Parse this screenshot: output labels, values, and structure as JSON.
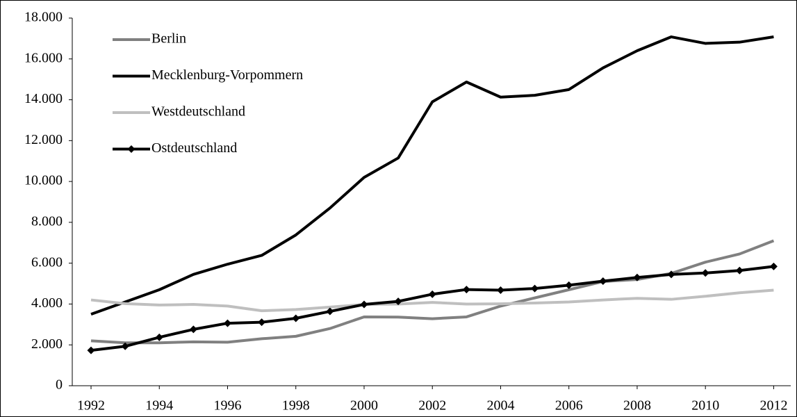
{
  "chart_data": {
    "type": "line",
    "x": [
      1992,
      1993,
      1994,
      1995,
      1996,
      1997,
      1998,
      1999,
      2000,
      2001,
      2002,
      2003,
      2004,
      2005,
      2006,
      2007,
      2008,
      2009,
      2010,
      2011,
      2012
    ],
    "xlim": [
      1991.45,
      2012.5
    ],
    "xticks": [
      1992,
      1994,
      1996,
      1998,
      2000,
      2002,
      2004,
      2006,
      2008,
      2010,
      2012
    ],
    "ylim": [
      0,
      18000
    ],
    "yticks": [
      0,
      {
        "value": 2000,
        "label": "2.000"
      },
      {
        "value": 4000,
        "label": "4.000"
      },
      {
        "value": 6000,
        "label": "6.000"
      },
      {
        "value": 8000,
        "label": "8.000"
      },
      {
        "value": 10000,
        "label": "10.000"
      },
      {
        "value": 12000,
        "label": "12.000"
      },
      {
        "value": 14000,
        "label": "14.000"
      },
      {
        "value": 16000,
        "label": "16.000"
      },
      {
        "value": 18000,
        "label": "18.000"
      }
    ],
    "grid": false,
    "legend": "upper left",
    "series": [
      {
        "name": "Berlin",
        "color": "#808080",
        "marker": "none",
        "values": [
          2200,
          2100,
          2100,
          2150,
          2130,
          2300,
          2420,
          2800,
          3370,
          3360,
          3280,
          3370,
          3900,
          4300,
          4700,
          5100,
          5200,
          5500,
          6050,
          6450,
          7100
        ]
      },
      {
        "name": "Mecklenburg-Vorpommern",
        "color": "#000000",
        "marker": "none",
        "values": [
          3500,
          4100,
          4700,
          5450,
          5950,
          6380,
          7380,
          8700,
          10200,
          11150,
          13900,
          14870,
          14130,
          14220,
          14500,
          15560,
          16400,
          17080,
          16760,
          16820,
          17080
        ]
      },
      {
        "name": "Westdeutschland",
        "color": "#bfbfbf",
        "marker": "none",
        "values": [
          4200,
          4020,
          3950,
          3980,
          3900,
          3670,
          3730,
          3850,
          3980,
          4000,
          4080,
          4000,
          4010,
          4050,
          4100,
          4200,
          4280,
          4230,
          4380,
          4550,
          4680
        ]
      },
      {
        "name": "Ostdeutschland",
        "color": "#000000",
        "marker": "diamond",
        "values": [
          1730,
          1930,
          2370,
          2760,
          3060,
          3110,
          3300,
          3640,
          3980,
          4130,
          4480,
          4710,
          4680,
          4760,
          4920,
          5120,
          5300,
          5450,
          5520,
          5640,
          5840
        ]
      }
    ]
  }
}
